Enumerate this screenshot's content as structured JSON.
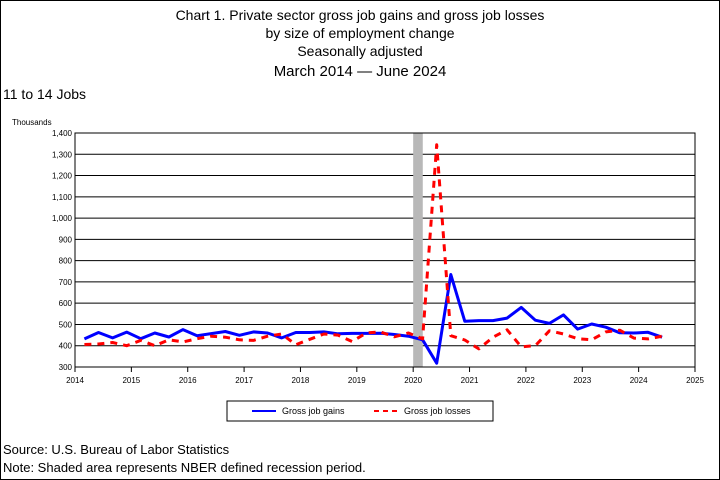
{
  "title_lines": [
    "Chart 1. Private sector gross job gains and gross job losses",
    "by size of employment change",
    "Seasonally adjusted",
    "March 2014 — June 2024"
  ],
  "size_class": "11 to 14 Jobs",
  "footer": {
    "source": "Source: U.S. Bureau of Labor Statistics",
    "note": "Note: Shaded area represents NBER defined recession period."
  },
  "colors": {
    "gains": "#0000ff",
    "losses": "#ff0000",
    "recession": "#b8b8b8"
  },
  "chart_data": {
    "type": "line",
    "ylabel": "Thousands",
    "ylim": [
      300,
      1400
    ],
    "yticks": [
      300,
      400,
      500,
      600,
      700,
      800,
      900,
      1000,
      1100,
      1200,
      1300,
      1400
    ],
    "ytick_labels": [
      "300",
      "400",
      "500",
      "600",
      "700",
      "800",
      "900",
      "1,000",
      "1,100",
      "1,200",
      "1,300",
      "1,400"
    ],
    "xlim": [
      2014,
      2025
    ],
    "xticks": [
      2014,
      2015,
      2016,
      2017,
      2018,
      2019,
      2020,
      2021,
      2022,
      2023,
      2024,
      2025
    ],
    "xtick_labels": [
      "2014",
      "2015",
      "2016",
      "2017",
      "2018",
      "2019",
      "2020",
      "2021",
      "2022",
      "2023",
      "2024",
      "2025"
    ],
    "grid": true,
    "legend_placement": "bottom",
    "recession": {
      "start": 2020.0,
      "end": 2020.17
    },
    "x_quarters": [
      "2014-03",
      "2014-06",
      "2014-09",
      "2014-12",
      "2015-03",
      "2015-06",
      "2015-09",
      "2015-12",
      "2016-03",
      "2016-06",
      "2016-09",
      "2016-12",
      "2017-03",
      "2017-06",
      "2017-09",
      "2017-12",
      "2018-03",
      "2018-06",
      "2018-09",
      "2018-12",
      "2019-03",
      "2019-06",
      "2019-09",
      "2019-12",
      "2020-03",
      "2020-06",
      "2020-09",
      "2020-12",
      "2021-03",
      "2021-06",
      "2021-09",
      "2021-12",
      "2022-03",
      "2022-06",
      "2022-09",
      "2022-12",
      "2023-03",
      "2023-06",
      "2023-09",
      "2023-12",
      "2024-03",
      "2024-06"
    ],
    "series": [
      {
        "name": "Gross job gains",
        "style": "solid",
        "values": [
          432,
          462,
          437,
          464,
          433,
          460,
          441,
          476,
          447,
          457,
          467,
          449,
          465,
          460,
          437,
          462,
          462,
          465,
          456,
          458,
          458,
          459,
          453,
          445,
          428,
          318,
          735,
          515,
          518,
          518,
          530,
          580,
          520,
          505,
          545,
          478,
          502,
          487,
          461,
          460,
          463,
          440
        ]
      },
      {
        "name": "Gross job losses",
        "style": "dashed",
        "values": [
          406,
          408,
          415,
          400,
          425,
          400,
          428,
          418,
          433,
          445,
          440,
          428,
          425,
          445,
          455,
          405,
          430,
          455,
          450,
          420,
          460,
          465,
          442,
          460,
          432,
          1345,
          447,
          427,
          385,
          440,
          475,
          395,
          400,
          470,
          455,
          433,
          428,
          465,
          473,
          436,
          432,
          445
        ]
      }
    ]
  }
}
